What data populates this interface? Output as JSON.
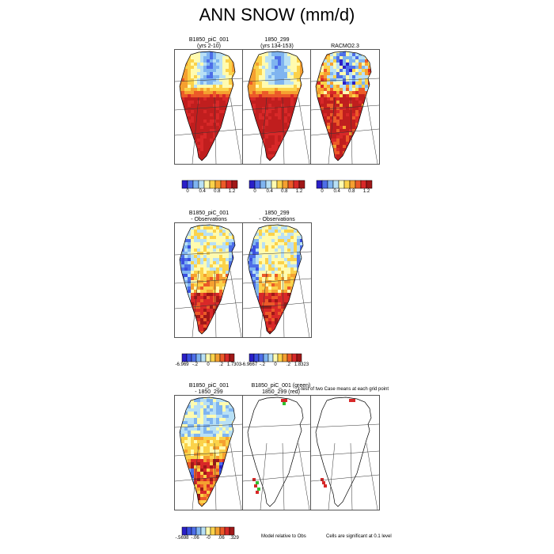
{
  "title": "ANN SNOW (mm/d)",
  "rows": [
    {
      "panels": [
        {
          "id": "r0p0",
          "title1": "B1850_piC_001",
          "title2": "(yrs 2-10)",
          "style": "clim"
        },
        {
          "id": "r0p1",
          "title1": "1850_299",
          "title2": "(yrs 134-153)",
          "style": "clim"
        },
        {
          "id": "r0p2",
          "title1": "RACMO2.3",
          "title2": "",
          "style": "climobs"
        }
      ],
      "colorbars": [
        {
          "id": "cb0",
          "ticks": [
            "0",
            "0.4",
            "0.8",
            "1.2"
          ],
          "colors": [
            "#2a1fc8",
            "#4d6ee8",
            "#7fb4f0",
            "#b8e0f5",
            "#fffbb0",
            "#fbd24a",
            "#f5a030",
            "#ec5a28",
            "#d82828",
            "#a01818"
          ]
        },
        {
          "id": "cb1",
          "ticks": [
            "0",
            "0.4",
            "0.8",
            "1.2"
          ],
          "colors": [
            "#2a1fc8",
            "#4d6ee8",
            "#7fb4f0",
            "#b8e0f5",
            "#fffbb0",
            "#fbd24a",
            "#f5a030",
            "#ec5a28",
            "#d82828",
            "#a01818"
          ]
        },
        {
          "id": "cb2",
          "ticks": [
            "0",
            "0.4",
            "0.8",
            "1.2"
          ],
          "colors": [
            "#2a1fc8",
            "#4d6ee8",
            "#7fb4f0",
            "#b8e0f5",
            "#fffbb0",
            "#fbd24a",
            "#f5a030",
            "#ec5a28",
            "#d82828",
            "#a01818"
          ]
        }
      ]
    },
    {
      "panels": [
        {
          "id": "r1p0",
          "title1": "B1850_piC_001",
          "title2": "- Observations",
          "style": "bias"
        },
        {
          "id": "r1p1",
          "title1": "1850_299",
          "title2": "- Observations",
          "style": "bias"
        }
      ],
      "colorbars": [
        {
          "id": "cb3",
          "ticks": [
            "-6.969",
            "-.2",
            "0",
            ".2",
            "1.7303"
          ],
          "colors": [
            "#2a1fc8",
            "#3a4fe0",
            "#4d6ee8",
            "#7fb4f0",
            "#b8e0f5",
            "#fffbb0",
            "#fbd24a",
            "#f5a030",
            "#ec5a28",
            "#d82828",
            "#a01818"
          ]
        },
        {
          "id": "cb4",
          "ticks": [
            "-6.9667",
            "-.2",
            "0",
            ".2",
            "1.8323"
          ],
          "colors": [
            "#2a1fc8",
            "#3a4fe0",
            "#4d6ee8",
            "#7fb4f0",
            "#b8e0f5",
            "#fffbb0",
            "#fbd24a",
            "#f5a030",
            "#ec5a28",
            "#d82828",
            "#a01818"
          ]
        }
      ]
    },
    {
      "panels": [
        {
          "id": "r2p0",
          "title1": "B1850_piC_001",
          "title2": "- 1850_299",
          "style": "diff"
        },
        {
          "id": "r2p1",
          "title1": "B1850_piC_001 (green)",
          "title2": "1850_299 (red)",
          "style": "sig"
        },
        {
          "id": "r2p2",
          "title1": "",
          "title2": "",
          "style": "sig2"
        }
      ],
      "colorbars": [
        {
          "id": "cb5",
          "ticks": [
            "-.5698",
            "-.06",
            "-0",
            ".06",
            ".329"
          ],
          "colors": [
            "#2a1fc8",
            "#3a4fe0",
            "#4d6ee8",
            "#7fb4f0",
            "#b8e0f5",
            "#fffbb0",
            "#fbd24a",
            "#f5a030",
            "#ec5a28",
            "#d82828",
            "#a01818"
          ]
        }
      ],
      "notes": {
        "ttest": "t-test of two Case means at each grid point",
        "model_rel": "Model relative to Obs",
        "significance": "Cells are significant at 0.1 level"
      }
    }
  ],
  "chart_data": {
    "type": "heatmap",
    "title": "ANN SNOW (mm/d)",
    "panels": [
      {
        "title": "B1850_piC_001 (yrs 2-10)",
        "colorbar_range": [
          0,
          1.2
        ]
      },
      {
        "title": "1850_299 (yrs 134-153)",
        "colorbar_range": [
          0,
          1.2
        ]
      },
      {
        "title": "RACMO2.3",
        "colorbar_range": [
          0,
          1.2
        ]
      },
      {
        "title": "B1850_piC_001 - Observations",
        "colorbar_range": [
          -6.969,
          1.7303
        ]
      },
      {
        "title": "1850_299 - Observations",
        "colorbar_range": [
          -6.9667,
          1.8323
        ]
      },
      {
        "title": "B1850_piC_001 - 1850_299",
        "colorbar_range": [
          -0.5698,
          0.329
        ]
      },
      {
        "title": "B1850_piC_001 (green) 1850_299 (red)"
      }
    ]
  }
}
